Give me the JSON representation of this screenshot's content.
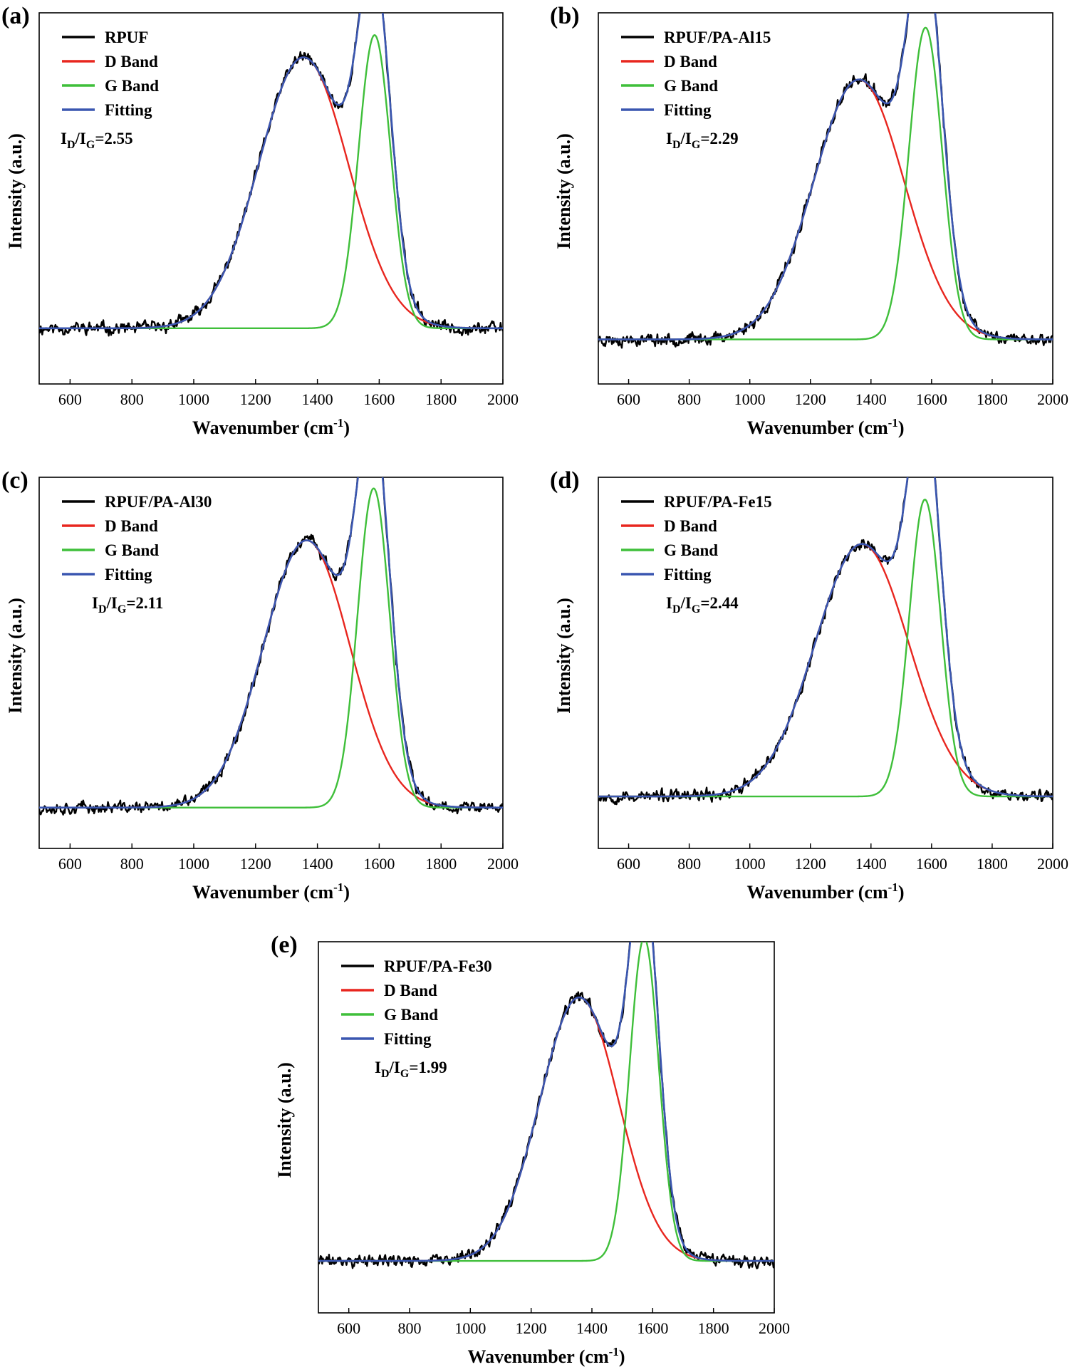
{
  "figure": {
    "xlabel": "Wavenumber (cm",
    "xlabel_sup": "-1",
    "xlabel_end": ")",
    "ylabel": "Intensity (a.u.)",
    "ratio_label": "I",
    "ratio_sub_d": "D",
    "ratio_slash": "/I",
    "ratio_sub_g": "G",
    "colors": {
      "raw": "#000000",
      "d_band": "#e8261f",
      "g_band": "#3fbf3a",
      "fitting": "#3a56b0"
    }
  },
  "chart_data": [
    {
      "type": "line",
      "panel": "(a)",
      "legend": [
        "RPUF",
        "D Band",
        "G Band",
        "Fitting"
      ],
      "ratio": "=2.55",
      "xlim": [
        500,
        2000
      ],
      "xticks": [
        "600",
        "800",
        "1000",
        "1200",
        "1400",
        "1600",
        "1800",
        "2000"
      ],
      "baseline": 0.15,
      "d_band": {
        "center": 1355,
        "amplitude": 0.73,
        "width": 145
      },
      "g_band": {
        "center": 1585,
        "amplitude": 0.79,
        "width": 52
      },
      "noise_seed": 11
    },
    {
      "type": "line",
      "panel": "(b)",
      "legend": [
        "RPUF/PA-Al15",
        "D Band",
        "G Band",
        "Fitting"
      ],
      "ratio": "=2.29",
      "xlim": [
        500,
        2000
      ],
      "xticks": [
        "600",
        "800",
        "1000",
        "1200",
        "1400",
        "1600",
        "1800",
        "2000"
      ],
      "baseline": 0.12,
      "d_band": {
        "center": 1360,
        "amplitude": 0.7,
        "width": 150
      },
      "g_band": {
        "center": 1580,
        "amplitude": 0.84,
        "width": 55
      },
      "noise_seed": 23
    },
    {
      "type": "line",
      "panel": "(c)",
      "legend": [
        "RPUF/PA-Al30",
        "D Band",
        "G Band",
        "Fitting"
      ],
      "ratio": "=2.11",
      "xlim": [
        500,
        2000
      ],
      "xticks": [
        "600",
        "800",
        "1000",
        "1200",
        "1400",
        "1600",
        "1800",
        "2000"
      ],
      "baseline": 0.11,
      "d_band": {
        "center": 1365,
        "amplitude": 0.72,
        "width": 140
      },
      "g_band": {
        "center": 1582,
        "amplitude": 0.86,
        "width": 52
      },
      "noise_seed": 37
    },
    {
      "type": "line",
      "panel": "(d)",
      "legend": [
        "RPUF/PA-Fe15",
        "D Band",
        "G Band",
        "Fitting"
      ],
      "ratio": "=2.44",
      "xlim": [
        500,
        2000
      ],
      "xticks": [
        "600",
        "800",
        "1000",
        "1200",
        "1400",
        "1600",
        "1800",
        "2000"
      ],
      "baseline": 0.14,
      "d_band": {
        "center": 1370,
        "amplitude": 0.68,
        "width": 155
      },
      "g_band": {
        "center": 1578,
        "amplitude": 0.8,
        "width": 52
      },
      "noise_seed": 53
    },
    {
      "type": "line",
      "panel": "(e)",
      "legend": [
        "RPUF/PA-Fe30",
        "D Band",
        "G Band",
        "Fitting"
      ],
      "ratio": "=1.99",
      "xlim": [
        500,
        2000
      ],
      "xticks": [
        "600",
        "800",
        "1000",
        "1200",
        "1400",
        "1600",
        "1800",
        "2000"
      ],
      "baseline": 0.14,
      "d_band": {
        "center": 1358,
        "amplitude": 0.71,
        "width": 130
      },
      "g_band": {
        "center": 1572,
        "amplitude": 0.87,
        "width": 48
      },
      "noise_seed": 71
    }
  ]
}
